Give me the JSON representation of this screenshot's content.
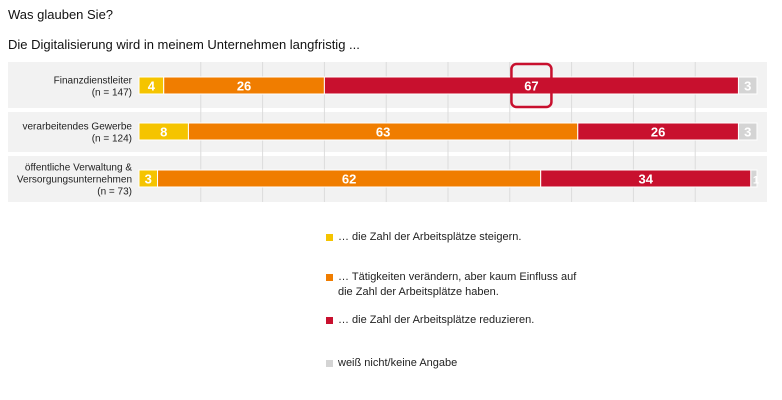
{
  "header": {
    "question": "Was glauben Sie?",
    "statement": "Die Digitalisierung wird in meinem Unternehmen langfristig ..."
  },
  "chart_data": {
    "type": "bar",
    "orientation": "horizontal",
    "stacked": true,
    "xlim": [
      0,
      100
    ],
    "grid": true,
    "legend_position": "bottom",
    "categories": [
      "Finanzdienstleiter (n = 147)",
      "verarbeitendes Gewerbe (n = 124)",
      "öffentliche Verwaltung & Versorgungsunternehmen (n = 73)"
    ],
    "category_lines": [
      [
        "Finanzdienstleiter",
        "(n = 147)"
      ],
      [
        "verarbeitendes Gewerbe",
        "(n = 124)"
      ],
      [
        "öffentliche Verwaltung &",
        "Versorgungsunternehmen",
        "(n = 73)"
      ]
    ],
    "series": [
      {
        "name": "… die Zahl der Arbeitsplätze steigern.",
        "color": "#f5c400",
        "values": [
          4,
          8,
          3
        ]
      },
      {
        "name": "… Tätigkeiten verändern, aber kaum Einfluss auf die Zahl der Arbeitsplätze haben.",
        "color": "#f07d00",
        "values": [
          26,
          63,
          62
        ]
      },
      {
        "name": "… die Zahl der Arbeitsplätze reduzieren.",
        "color": "#c8102e",
        "values": [
          67,
          26,
          34
        ]
      },
      {
        "name": "weiß nicht/keine Angabe",
        "color": "#d4d4d4",
        "values": [
          3,
          3,
          1
        ]
      }
    ],
    "highlight": {
      "category_index": 0,
      "series_index": 2,
      "color": "#c8102e"
    }
  },
  "legend": {
    "items": [
      {
        "lines": [
          "… die Zahl der Arbeitsplätze steigern."
        ],
        "color": "#f5c400"
      },
      {
        "lines": [
          "… Tätigkeiten verändern, aber kaum Einfluss auf",
          "die Zahl der Arbeitsplätze haben."
        ],
        "color": "#f07d00"
      },
      {
        "lines": [
          "… die Zahl der Arbeitsplätze reduzieren."
        ],
        "color": "#c8102e"
      },
      {
        "lines": [
          "weiß nicht/keine Angabe"
        ],
        "color": "#d4d4d4"
      }
    ]
  }
}
